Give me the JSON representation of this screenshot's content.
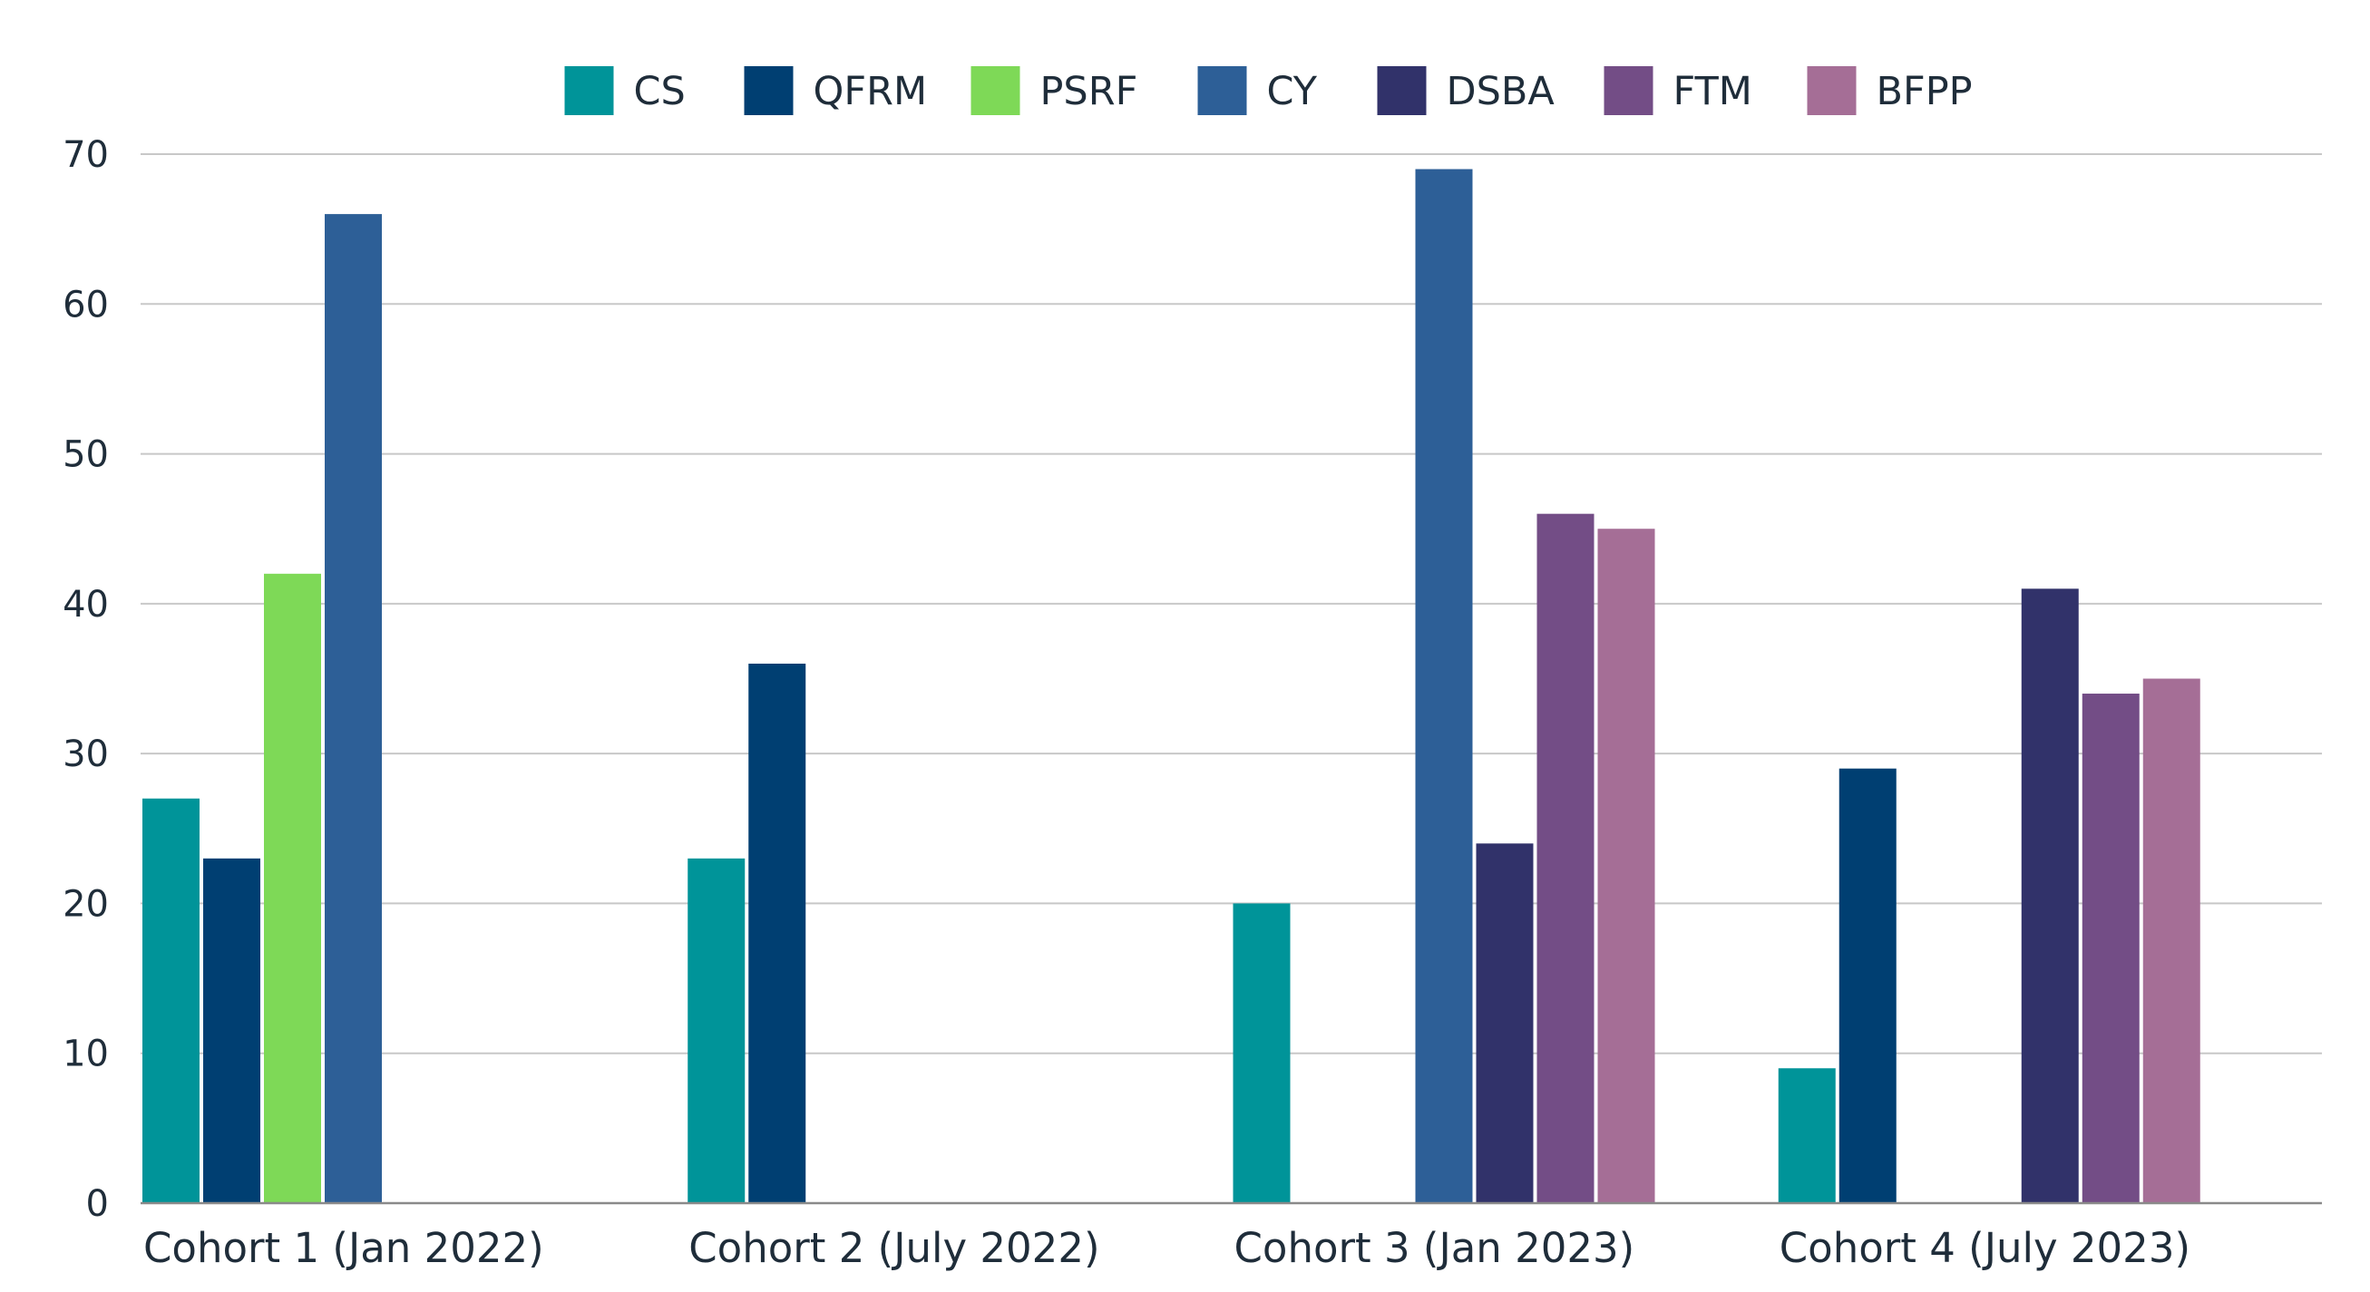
{
  "chart_data": {
    "type": "bar",
    "title": "",
    "xlabel": "",
    "ylabel": "",
    "categories": [
      "Cohort 1 (Jan 2022)",
      "Cohort 2 (July 2022)",
      "Cohort 3 (Jan 2023)",
      "Cohort 4 (July 2023)"
    ],
    "ylim": [
      0,
      70
    ],
    "yticks": [
      "0",
      "10",
      "20",
      "30",
      "40",
      "50",
      "60",
      "70"
    ],
    "grid": true,
    "legend_position": "top",
    "series": [
      {
        "name": "CS",
        "color": "#009499",
        "values": [
          27,
          23,
          20,
          9
        ]
      },
      {
        "name": "QFRM",
        "color": "#003F72",
        "values": [
          23,
          36,
          null,
          29
        ]
      },
      {
        "name": "PSRF",
        "color": "#7ED957",
        "values": [
          42,
          null,
          null,
          null
        ]
      },
      {
        "name": "CY",
        "color": "#2D5F97",
        "values": [
          66,
          null,
          69,
          null
        ]
      },
      {
        "name": "DSBA",
        "color": "#31326A",
        "values": [
          null,
          null,
          24,
          41
        ]
      },
      {
        "name": "FTM",
        "color": "#734D86",
        "values": [
          null,
          null,
          46,
          34
        ]
      },
      {
        "name": "BFPP",
        "color": "#A56E96",
        "values": [
          null,
          null,
          45,
          35
        ]
      }
    ]
  }
}
